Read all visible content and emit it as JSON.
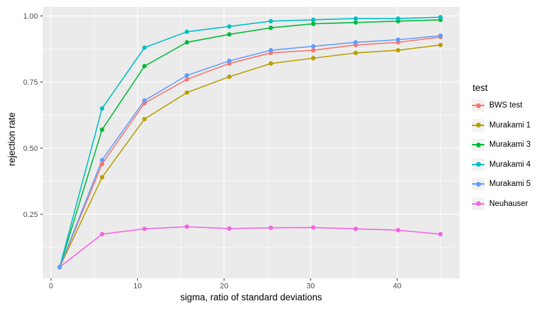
{
  "chart_data": {
    "type": "line",
    "title": "",
    "xlabel": "sigma, ratio of standard deviations",
    "ylabel": "rejection rate",
    "legend_title": "test",
    "legend_position": "right",
    "grid": true,
    "x": [
      1,
      5.9,
      10.8,
      15.7,
      20.6,
      25.4,
      30.3,
      35.2,
      40.1,
      45
    ],
    "series": [
      {
        "name": "BWS test",
        "color": "#F8766D",
        "values": [
          0.05,
          0.44,
          0.67,
          0.76,
          0.82,
          0.86,
          0.87,
          0.89,
          0.9,
          0.92
        ]
      },
      {
        "name": "Murakami 1",
        "color": "#B79F00",
        "values": [
          0.05,
          0.39,
          0.61,
          0.71,
          0.77,
          0.82,
          0.84,
          0.86,
          0.87,
          0.89
        ]
      },
      {
        "name": "Murakami 3",
        "color": "#00BA38",
        "values": [
          0.05,
          0.57,
          0.81,
          0.9,
          0.93,
          0.955,
          0.97,
          0.975,
          0.98,
          0.985
        ]
      },
      {
        "name": "Murakami 4",
        "color": "#00BFC4",
        "values": [
          0.05,
          0.65,
          0.88,
          0.94,
          0.96,
          0.98,
          0.985,
          0.99,
          0.99,
          0.995
        ]
      },
      {
        "name": "Murakami 5",
        "color": "#619CFF",
        "values": [
          0.05,
          0.455,
          0.68,
          0.775,
          0.83,
          0.87,
          0.885,
          0.9,
          0.91,
          0.925
        ]
      },
      {
        "name": "Neuhauser",
        "color": "#F564E3",
        "values": [
          0.05,
          0.175,
          0.195,
          0.203,
          0.196,
          0.199,
          0.2,
          0.195,
          0.19,
          0.175
        ]
      }
    ],
    "x_ticks": [
      0,
      10,
      20,
      30,
      40
    ],
    "x_tick_labels": [
      "0",
      "10",
      "20",
      "30",
      "40"
    ],
    "x_minor_ticks": [
      5,
      15,
      25,
      35,
      45
    ],
    "y_ticks": [
      0.25,
      0.5,
      0.75,
      1.0
    ],
    "y_tick_labels": [
      "0.25",
      "0.50",
      "0.75",
      "1.00"
    ],
    "y_minor_ticks": [
      0.125,
      0.375,
      0.625,
      0.875
    ],
    "xlim": [
      -0.95,
      47.2
    ],
    "ylim": [
      0.008,
      1.034
    ],
    "panel_bg": "#EBEBEB",
    "grid_color": "#FFFFFF",
    "tick_color": "#333333",
    "axis_text_color": "#4D4D4D",
    "legend_key_bg": "#F2F2F2"
  }
}
